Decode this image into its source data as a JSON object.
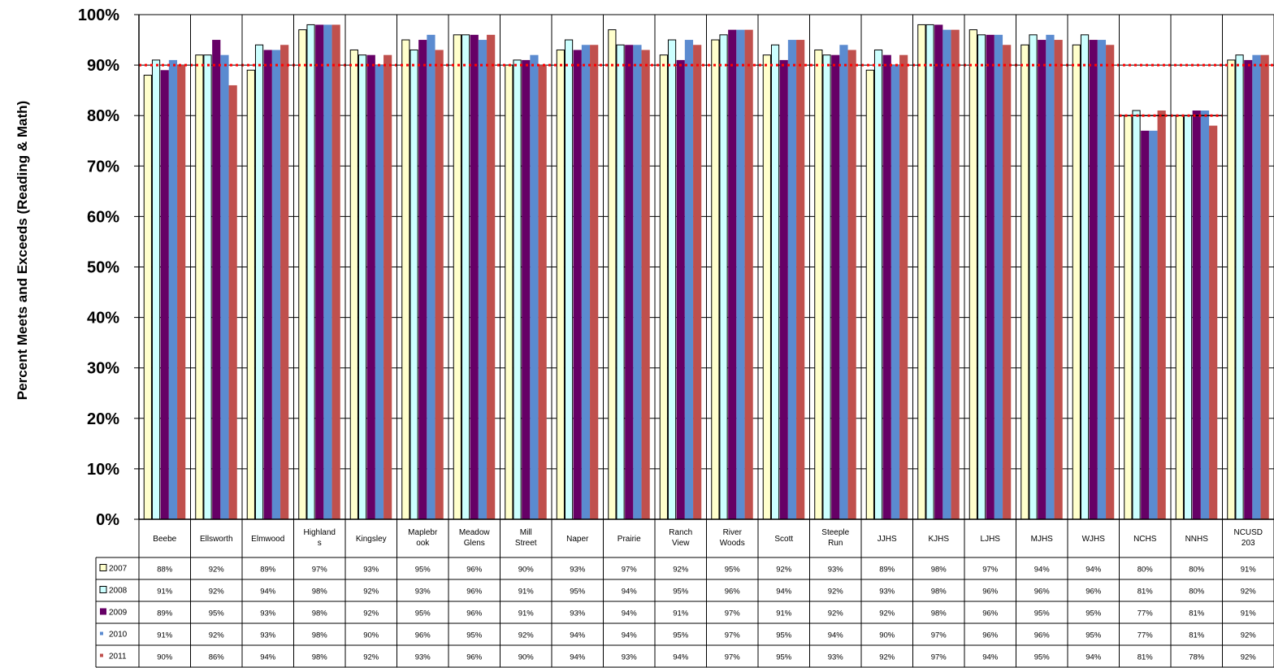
{
  "chart_data": {
    "type": "bar",
    "title": "",
    "xlabel": "",
    "ylabel": "Percent Meets and Exceeds (Reading & Math)",
    "ylim": [
      0,
      100
    ],
    "ytick_labels": [
      "0%",
      "10%",
      "20%",
      "30%",
      "40%",
      "50%",
      "60%",
      "70%",
      "80%",
      "90%",
      "100%"
    ],
    "grid": "horizontal",
    "legend": "data-table-left",
    "data_table": true,
    "categories": [
      "Beebe",
      "Ellsworth",
      "Elmwood",
      "Highlands",
      "Kingsley",
      "Maplebrook",
      "Meadow Glens",
      "Mill Street",
      "Naper",
      "Prairie",
      "Ranch View",
      "River Woods",
      "Scott",
      "Steeple Run",
      "JJHS",
      "KJHS",
      "LJHS",
      "MJHS",
      "WJHS",
      "NCHS",
      "NNHS",
      "NCUSD 203"
    ],
    "category_lines": [
      [
        "Beebe"
      ],
      [
        "Ellsworth"
      ],
      [
        "Elmwood"
      ],
      [
        "Highland",
        "s"
      ],
      [
        "Kingsley"
      ],
      [
        "Maplebr",
        "ook"
      ],
      [
        "Meadow",
        "Glens"
      ],
      [
        "Mill",
        "Street"
      ],
      [
        "Naper"
      ],
      [
        "Prairie"
      ],
      [
        "Ranch",
        "View"
      ],
      [
        "River",
        "Woods"
      ],
      [
        "Scott"
      ],
      [
        "Steeple",
        "Run"
      ],
      [
        "JJHS"
      ],
      [
        "KJHS"
      ],
      [
        "LJHS"
      ],
      [
        "MJHS"
      ],
      [
        "WJHS"
      ],
      [
        "NCHS"
      ],
      [
        "NNHS"
      ],
      [
        "NCUSD",
        "203"
      ]
    ],
    "series": [
      {
        "name": "2007",
        "color": "#FFFFCC",
        "values": [
          88,
          92,
          89,
          97,
          93,
          95,
          96,
          90,
          93,
          97,
          92,
          95,
          92,
          93,
          89,
          98,
          97,
          94,
          94,
          80,
          80,
          91
        ]
      },
      {
        "name": "2008",
        "color": "#CCFFFF",
        "values": [
          91,
          92,
          94,
          98,
          92,
          93,
          96,
          91,
          95,
          94,
          95,
          96,
          94,
          92,
          93,
          98,
          96,
          96,
          96,
          81,
          80,
          92
        ]
      },
      {
        "name": "2009",
        "color": "#660066",
        "values": [
          89,
          95,
          93,
          98,
          92,
          95,
          96,
          91,
          93,
          94,
          91,
          97,
          91,
          92,
          92,
          98,
          96,
          95,
          95,
          77,
          81,
          91
        ]
      },
      {
        "name": "2010",
        "color": "#5B8BD0",
        "values": [
          91,
          92,
          93,
          98,
          90,
          96,
          95,
          92,
          94,
          94,
          95,
          97,
          95,
          94,
          90,
          97,
          96,
          96,
          95,
          77,
          81,
          92
        ]
      },
      {
        "name": "2011",
        "color": "#C0504D",
        "values": [
          90,
          86,
          94,
          98,
          92,
          93,
          96,
          90,
          94,
          93,
          94,
          97,
          95,
          93,
          92,
          97,
          94,
          95,
          94,
          81,
          78,
          92
        ]
      }
    ],
    "reference_lines": [
      {
        "value": 90,
        "color": "#FF0000",
        "style": "dotted",
        "span": "full"
      },
      {
        "value": 80,
        "color": "#FF0000",
        "style": "dotted",
        "span": "NCHS-NNHS"
      }
    ]
  }
}
